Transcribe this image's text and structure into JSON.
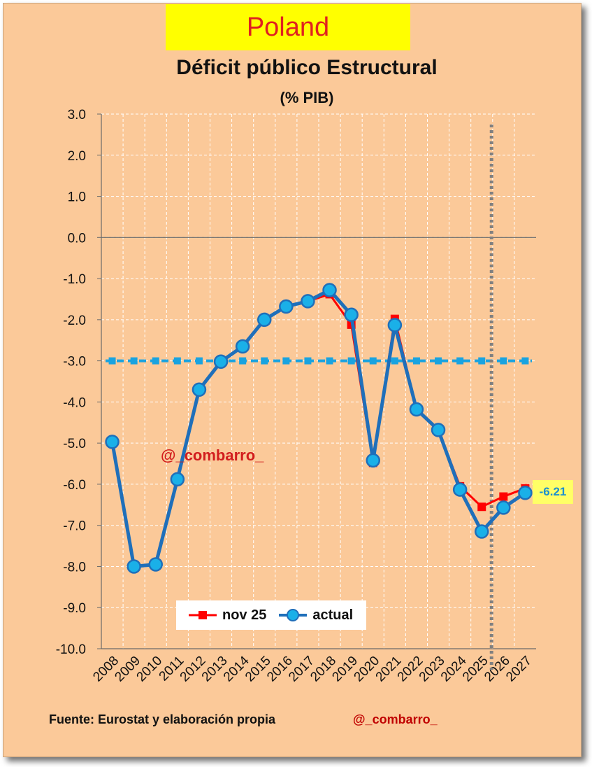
{
  "header": {
    "country": "Poland",
    "title": "Déficit público Estructural",
    "subtitle": "(% PIB)"
  },
  "watermark": "@_combarro_",
  "footer": {
    "source": "Fuente: Eurostat y elaboración propia",
    "handle": "@_combarro_"
  },
  "last_value_label": "-6.21",
  "chart_data": {
    "type": "line",
    "title": "Déficit público Estructural",
    "subtitle": "(% PIB)",
    "categories": [
      "2008",
      "2009",
      "2010",
      "2011",
      "2012",
      "2013",
      "2014",
      "2015",
      "2016",
      "2017",
      "2018",
      "2019",
      "2020",
      "2021",
      "2022",
      "2023",
      "2024",
      "2025",
      "2026",
      "2027"
    ],
    "ylim": [
      -10,
      3
    ],
    "yticks": [
      "3.0",
      "2.0",
      "1.0",
      "0.0",
      "-1.0",
      "-2.0",
      "-3.0",
      "-4.0",
      "-5.0",
      "-6.0",
      "-7.0",
      "-8.0",
      "-9.0",
      "-10.0"
    ],
    "grid": true,
    "legend_position": "bottom-left",
    "series": [
      {
        "name": "nov 25",
        "color": "#ff0000",
        "marker": "square",
        "values": [
          -4.97,
          -8.0,
          -7.95,
          -5.88,
          -3.7,
          -3.02,
          -2.65,
          -2.0,
          -1.68,
          -1.55,
          -1.38,
          -2.12,
          -5.48,
          -1.98,
          -4.18,
          -4.68,
          -6.05,
          -6.55,
          -6.3,
          -6.1
        ]
      },
      {
        "name": "actual",
        "color": "#1f6fba",
        "marker_fill": "#1ab0e8",
        "marker": "circle",
        "values": [
          -4.97,
          -8.0,
          -7.95,
          -5.88,
          -3.7,
          -3.02,
          -2.65,
          -2.0,
          -1.68,
          -1.55,
          -1.28,
          -1.88,
          -5.42,
          -2.13,
          -4.18,
          -4.68,
          -6.13,
          -7.15,
          -6.57,
          -6.21
        ]
      }
    ],
    "reference_line": {
      "value": -3.0,
      "color": "#19a3e0",
      "style": "dashed"
    },
    "vertical_marker": {
      "after_category": "2025",
      "color": "#808080",
      "style": "dotted"
    }
  }
}
